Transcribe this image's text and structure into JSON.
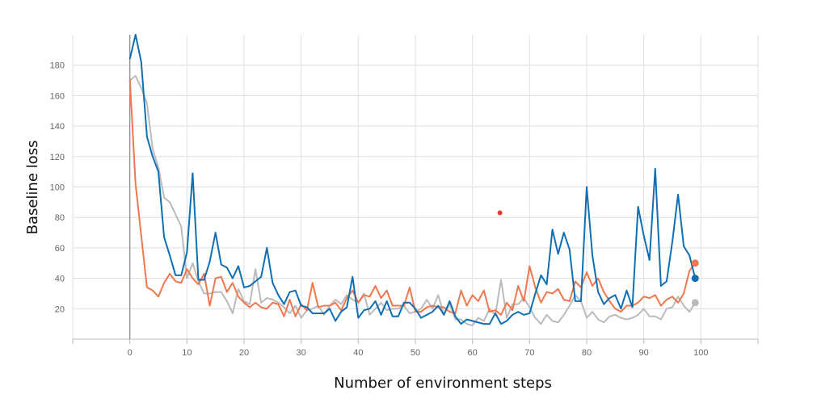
{
  "chart_data": {
    "type": "line",
    "title": "",
    "xlabel": "Number of environment steps",
    "ylabel": "Baseline loss",
    "xlim": [
      -10,
      110
    ],
    "ylim": [
      0,
      200
    ],
    "xticks": [
      0,
      10,
      20,
      30,
      40,
      50,
      60,
      70,
      80,
      90,
      100
    ],
    "yticks": [
      20,
      40,
      60,
      80,
      100,
      120,
      140,
      160,
      180
    ],
    "grid": true,
    "colors": {
      "blue": "#0f6fb4",
      "orange": "#f0774e",
      "gray": "#bbbbbb",
      "marker": "#e53935"
    },
    "series": [
      {
        "color": "#bbbbbb",
        "values": [
          170,
          173,
          165,
          155,
          125,
          113,
          93,
          90,
          82,
          74,
          40,
          50,
          38,
          30,
          30,
          31,
          31,
          25,
          17,
          33,
          25,
          23,
          46,
          24,
          27,
          26,
          24,
          21,
          17,
          22,
          14,
          19,
          20,
          22,
          16,
          22,
          26,
          23,
          29,
          26,
          24,
          30,
          16,
          20,
          24,
          19,
          20,
          20,
          22,
          17,
          18,
          20,
          26,
          20,
          29,
          16,
          23,
          13,
          13,
          10,
          9,
          14,
          12,
          20,
          16,
          39,
          14,
          23,
          23,
          27,
          21,
          14,
          10,
          16,
          12,
          11,
          16,
          22,
          29,
          25,
          14,
          18,
          13,
          11,
          15,
          16,
          14,
          13,
          14,
          16,
          20,
          15,
          15,
          13,
          20,
          21,
          28,
          22,
          18,
          24
        ]
      },
      {
        "color": "#f0774e",
        "values": [
          171,
          102,
          68,
          34,
          32,
          28,
          37,
          43,
          38,
          37,
          46,
          40,
          36,
          43,
          22,
          40,
          41,
          31,
          37,
          28,
          24,
          21,
          24,
          21,
          20,
          24,
          23,
          15,
          26,
          15,
          23,
          19,
          37,
          21,
          22,
          22,
          24,
          19,
          27,
          32,
          24,
          29,
          28,
          35,
          27,
          32,
          22,
          22,
          22,
          34,
          18,
          18,
          21,
          22,
          21,
          21,
          18,
          17,
          32,
          22,
          29,
          25,
          32,
          18,
          19,
          16,
          24,
          19,
          35,
          25,
          48,
          34,
          24,
          31,
          30,
          33,
          26,
          25,
          38,
          34,
          44,
          35,
          40,
          31,
          25,
          20,
          18,
          22,
          22,
          24,
          28,
          27,
          29,
          22,
          26,
          28,
          24,
          30,
          45,
          50
        ]
      },
      {
        "color": "#0f6fb4",
        "values": [
          184,
          200,
          182,
          133,
          120,
          110,
          67,
          55,
          42,
          42,
          57,
          109,
          39,
          39,
          51,
          70,
          49,
          47,
          40,
          48,
          34,
          35,
          38,
          41,
          60,
          37,
          29,
          23,
          31,
          32,
          22,
          21,
          17,
          17,
          17,
          20,
          12,
          18,
          21,
          41,
          14,
          19,
          20,
          25,
          16,
          25,
          15,
          15,
          24,
          24,
          20,
          14,
          16,
          18,
          22,
          16,
          25,
          15,
          10,
          13,
          12,
          11,
          10,
          10,
          17,
          10,
          12,
          16,
          18,
          16,
          17,
          30,
          42,
          36,
          72,
          56,
          70,
          59,
          25,
          25,
          100,
          55,
          31,
          23,
          27,
          29,
          20,
          32,
          21,
          87,
          68,
          52,
          112,
          35,
          38,
          64,
          95,
          61,
          55,
          40
        ]
      }
    ],
    "annotations": [
      {
        "type": "point",
        "x": 64.8,
        "y": 83,
        "color": "#e53935"
      }
    ]
  }
}
